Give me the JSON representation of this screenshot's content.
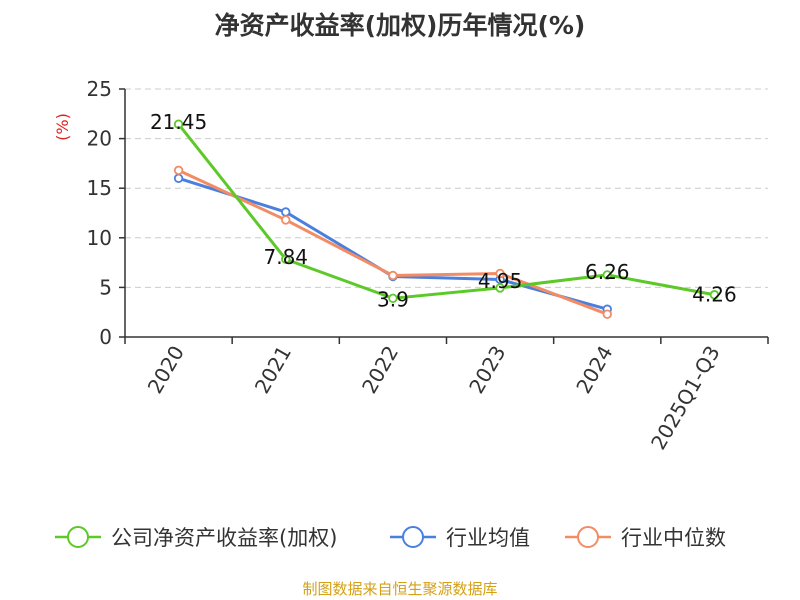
{
  "chart_data": {
    "type": "line",
    "title": "净资产收益率(加权)历年情况(%)",
    "ylabel": "(%)",
    "xlabel": "",
    "ylim": [
      0,
      25
    ],
    "yticks": [
      0,
      5,
      10,
      15,
      20,
      25
    ],
    "grid": true,
    "legend_position": "bottom",
    "categories": [
      "2020",
      "2021",
      "2022",
      "2023",
      "2024",
      "2025Q1-Q3"
    ],
    "series": [
      {
        "name": "公司净资产收益率(加权)",
        "color": "#5cc928",
        "values": [
          21.45,
          7.84,
          3.9,
          4.95,
          6.26,
          4.26
        ],
        "labels": [
          "21.45",
          "7.84",
          "3.9",
          "4.95",
          "6.26",
          "4.26"
        ]
      },
      {
        "name": "行业均值",
        "color": "#4a7fe0",
        "values": [
          16.0,
          12.6,
          6.1,
          5.8,
          2.8,
          null
        ]
      },
      {
        "name": "行业中位数",
        "color": "#f28c65",
        "values": [
          16.8,
          11.8,
          6.2,
          6.4,
          2.3,
          null
        ]
      }
    ]
  },
  "footer": {
    "text": "制图数据来自恒生聚源数据库",
    "color": "#d4a017"
  },
  "colors": {
    "axis": "#333333",
    "grid": "#cccccc",
    "ylabel": "#e02020"
  }
}
